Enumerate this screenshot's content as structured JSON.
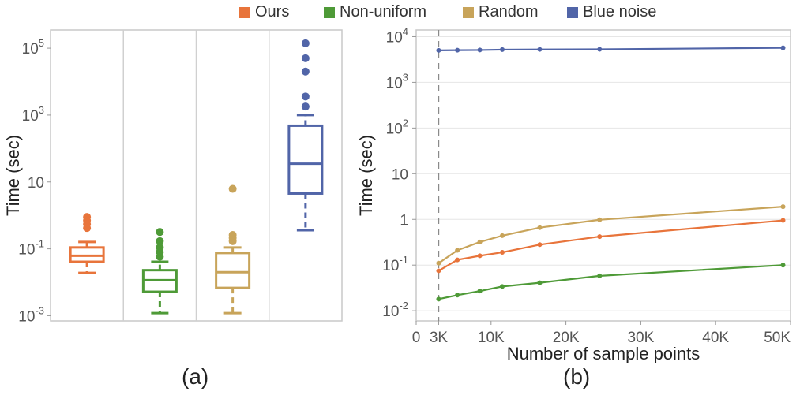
{
  "legend": [
    {
      "name": "Ours",
      "color": "#E8743B"
    },
    {
      "name": "Non-uniform",
      "color": "#4E9A37"
    },
    {
      "name": "Random",
      "color": "#C8A45A"
    },
    {
      "name": "Blue noise",
      "color": "#5165A8"
    }
  ],
  "panel_labels": {
    "a": "(a)",
    "b": "(b)"
  },
  "chart_data": [
    {
      "type": "box",
      "panel": "(a)",
      "xlabel": "",
      "ylabel": "Time (sec)",
      "yscale": "log",
      "ylim": [
        0.0007,
        350000
      ],
      "yticks": [
        {
          "value": 0.001,
          "base": "10",
          "exp": "-3"
        },
        {
          "value": 0.1,
          "base": "10",
          "exp": "-1"
        },
        {
          "value": 10,
          "base": "10",
          "exp": ""
        },
        {
          "value": 1000,
          "base": "10",
          "exp": "3"
        },
        {
          "value": 100000,
          "base": "10",
          "exp": "5"
        }
      ],
      "grid": false,
      "series": [
        {
          "name": "Ours",
          "color": "#E8743B",
          "whisker_low": 0.019,
          "q1": 0.041,
          "median": 0.062,
          "q3": 0.11,
          "whisker_high": 0.16,
          "outliers": [
            0.42,
            0.55,
            0.7,
            0.9
          ]
        },
        {
          "name": "Non-uniform",
          "color": "#4E9A37",
          "whisker_low": 0.0012,
          "q1": 0.0052,
          "median": 0.0115,
          "q3": 0.023,
          "whisker_high": 0.041,
          "outliers": [
            0.058,
            0.08,
            0.11,
            0.17,
            0.32
          ]
        },
        {
          "name": "Random",
          "color": "#C8A45A",
          "whisker_low": 0.0012,
          "q1": 0.0068,
          "median": 0.02,
          "q3": 0.075,
          "whisker_high": 0.11,
          "outliers": [
            0.17,
            0.21,
            0.26,
            6.2
          ]
        },
        {
          "name": "Blue noise",
          "color": "#5165A8",
          "whisker_low": 0.36,
          "q1": 4.5,
          "median": 35,
          "q3": 480,
          "whisker_high": 1000,
          "outliers": [
            1800,
            3600,
            20000,
            50000,
            140000
          ]
        }
      ]
    },
    {
      "type": "line",
      "panel": "(b)",
      "xlabel": "Number of sample points",
      "ylabel": "Time (sec)",
      "yscale": "log",
      "xlim": [
        0,
        50000
      ],
      "ylim": [
        0.006,
        14000
      ],
      "xticks": [
        {
          "value": 0,
          "label": "0"
        },
        {
          "value": 3000,
          "label": "3K"
        },
        {
          "value": 10000,
          "label": "10K"
        },
        {
          "value": 20000,
          "label": "20K"
        },
        {
          "value": 30000,
          "label": "30K"
        },
        {
          "value": 40000,
          "label": "40K"
        },
        {
          "value": 50000,
          "label": "50K"
        }
      ],
      "yticks": [
        {
          "value": 0.01,
          "base": "10",
          "exp": "-2"
        },
        {
          "value": 0.1,
          "base": "10",
          "exp": "-1"
        },
        {
          "value": 1,
          "base": "1",
          "exp": ""
        },
        {
          "value": 10,
          "base": "10",
          "exp": ""
        },
        {
          "value": 100,
          "base": "10",
          "exp": "2"
        },
        {
          "value": 1000,
          "base": "10",
          "exp": "3"
        },
        {
          "value": 10000,
          "base": "10",
          "exp": "4"
        }
      ],
      "grid": true,
      "reference_line_x": 3000,
      "x": [
        3000,
        5500,
        8500,
        11500,
        16500,
        24500,
        49000
      ],
      "series": [
        {
          "name": "Ours",
          "color": "#E8743B",
          "values": [
            0.075,
            0.13,
            0.16,
            0.19,
            0.28,
            0.42,
            0.95
          ]
        },
        {
          "name": "Non-uniform",
          "color": "#4E9A37",
          "values": [
            0.018,
            0.022,
            0.027,
            0.034,
            0.041,
            0.058,
            0.1
          ]
        },
        {
          "name": "Random",
          "color": "#C8A45A",
          "values": [
            0.11,
            0.21,
            0.32,
            0.44,
            0.66,
            0.98,
            1.9
          ]
        },
        {
          "name": "Blue noise",
          "color": "#5165A8",
          "values": [
            5000,
            5050,
            5100,
            5200,
            5250,
            5300,
            5700
          ]
        }
      ]
    }
  ]
}
